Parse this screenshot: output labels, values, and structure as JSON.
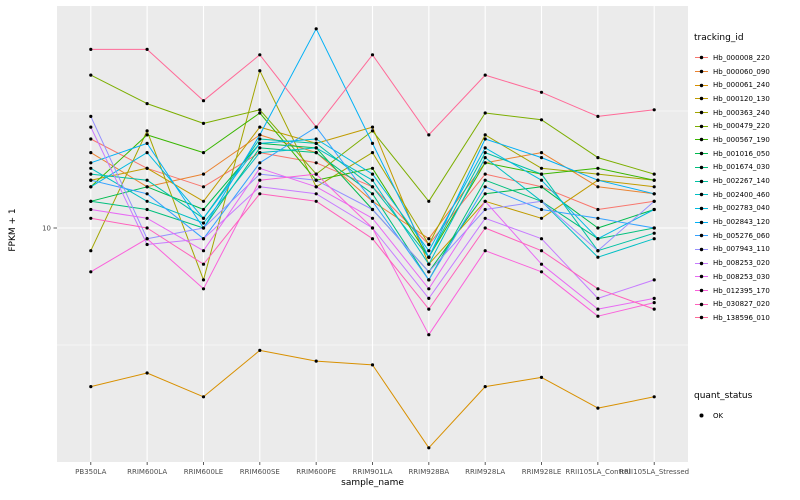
{
  "figure": {
    "panel_bg": "#EBEBEB",
    "grid_color": "#FFFFFF",
    "tick_color": "#333333",
    "axis_text_color": "#4D4D4D"
  },
  "axes": {
    "x_title": "sample_name",
    "y_title": "FPKM + 1",
    "y_tick_label": "10"
  },
  "legend": {
    "tracking_title": "tracking_id",
    "quant_title": "quant_status",
    "quant_items": [
      {
        "label": "OK",
        "marker_color": "#000000"
      }
    ]
  },
  "chart_data": {
    "type": "line",
    "title": "",
    "xlabel": "sample_name",
    "ylabel": "FPKM + 1",
    "y_scale": "log10",
    "y_ticks_labeled": [
      10
    ],
    "y_minor_gridlines": [
      3.162,
      31.62
    ],
    "ylim_approx": [
      1,
      90
    ],
    "legend_position": "right",
    "grid": true,
    "point_color": "#000000",
    "quant_status": "OK",
    "categories": [
      "PB350LA",
      "RRIM600LA",
      "RRIM600LE",
      "RRIM600SE",
      "RRIM600PE",
      "RRIM901LA",
      "RRIM928BA",
      "RRIM928LA",
      "RRIM928LE",
      "RRII105LA_Control",
      "RRII105LA_Stressed"
    ],
    "series": [
      {
        "name": "Hb_000008_220",
        "color": "#F8766D",
        "values": [
          24,
          18,
          15,
          21,
          19,
          15,
          8.5,
          17,
          15,
          12,
          13
        ]
      },
      {
        "name": "Hb_000060_090",
        "color": "#EA8331",
        "values": [
          21,
          15,
          17,
          25,
          21,
          13,
          9,
          19,
          21,
          15,
          14
        ]
      },
      {
        "name": "Hb_000061_240",
        "color": "#D89000",
        "values": [
          2.1,
          2.4,
          1.9,
          3.0,
          2.7,
          2.6,
          1.15,
          2.1,
          2.3,
          1.7,
          1.9
        ]
      },
      {
        "name": "Hb_000120_130",
        "color": "#C09B00",
        "values": [
          16,
          18,
          13,
          27,
          23,
          27,
          7,
          13,
          11,
          16,
          15
        ]
      },
      {
        "name": "Hb_000363_240",
        "color": "#A3A500",
        "values": [
          8,
          26,
          6,
          47,
          15,
          21,
          8.5,
          25,
          18,
          17,
          16
        ]
      },
      {
        "name": "Hb_000479_220",
        "color": "#7CAE00",
        "values": [
          45,
          34,
          28,
          32,
          17,
          26,
          13,
          31,
          29,
          20,
          17
        ]
      },
      {
        "name": "Hb_000567_190",
        "color": "#39B600",
        "values": [
          15,
          25,
          21,
          31,
          16,
          18,
          7.5,
          19,
          17,
          18,
          16
        ]
      },
      {
        "name": "Hb_001016_050",
        "color": "#00BB4E",
        "values": [
          13,
          15,
          12,
          23,
          22,
          12,
          6.5,
          14,
          15,
          10,
          12
        ]
      },
      {
        "name": "Hb_001674_030",
        "color": "#00BF7D",
        "values": [
          13,
          12,
          10,
          22,
          21,
          14,
          6,
          16,
          13,
          9,
          10
        ]
      },
      {
        "name": "Hb_002267_140",
        "color": "#00C1A3",
        "values": [
          17,
          16,
          11,
          24,
          23,
          15,
          7.5,
          21,
          17,
          8,
          9.5
        ]
      },
      {
        "name": "Hb_002400_460",
        "color": "#00BFC4",
        "values": [
          18,
          13,
          10.5,
          21,
          22,
          16,
          7,
          20,
          13,
          7.5,
          9
        ]
      },
      {
        "name": "Hb_002783_040",
        "color": "#00BAE0",
        "values": [
          15,
          21,
          11,
          23,
          24,
          17,
          8,
          22,
          16,
          9,
          12
        ]
      },
      {
        "name": "Hb_002843_120",
        "color": "#00B0F6",
        "values": [
          19,
          23,
          10,
          25,
          71,
          23,
          7.5,
          24,
          20,
          16,
          14
        ]
      },
      {
        "name": "Hb_005276_060",
        "color": "#35A2FF",
        "values": [
          16,
          14,
          9,
          19,
          27,
          13,
          6,
          15,
          12,
          11,
          10
        ]
      },
      {
        "name": "Hb_007943_110",
        "color": "#9590FF",
        "values": [
          30,
          9,
          10,
          17,
          16,
          12,
          6.5,
          12,
          13,
          8,
          13
        ]
      },
      {
        "name": "Hb_008253_020",
        "color": "#C77CFF",
        "values": [
          27,
          8.5,
          9,
          15,
          14,
          10,
          5,
          11,
          9,
          5,
          6
        ]
      },
      {
        "name": "Hb_008253_030",
        "color": "#E76BF3",
        "values": [
          12,
          11,
          8,
          18,
          15,
          11,
          5.5,
          13,
          7,
          4.5,
          5
        ]
      },
      {
        "name": "Hb_012395_170",
        "color": "#FA62DB",
        "values": [
          6.5,
          9,
          5.5,
          16,
          17,
          10,
          3.5,
          8,
          6.5,
          4.2,
          4.8
        ]
      },
      {
        "name": "Hb_030827_020",
        "color": "#FF62BC",
        "values": [
          11,
          10,
          7,
          14,
          13,
          9,
          4.5,
          10,
          8,
          5.5,
          4.5
        ]
      },
      {
        "name": "Hb_138596_010",
        "color": "#FF6A98",
        "values": [
          58,
          58,
          35,
          55,
          27,
          55,
          25,
          45,
          38,
          30,
          32
        ]
      }
    ]
  }
}
